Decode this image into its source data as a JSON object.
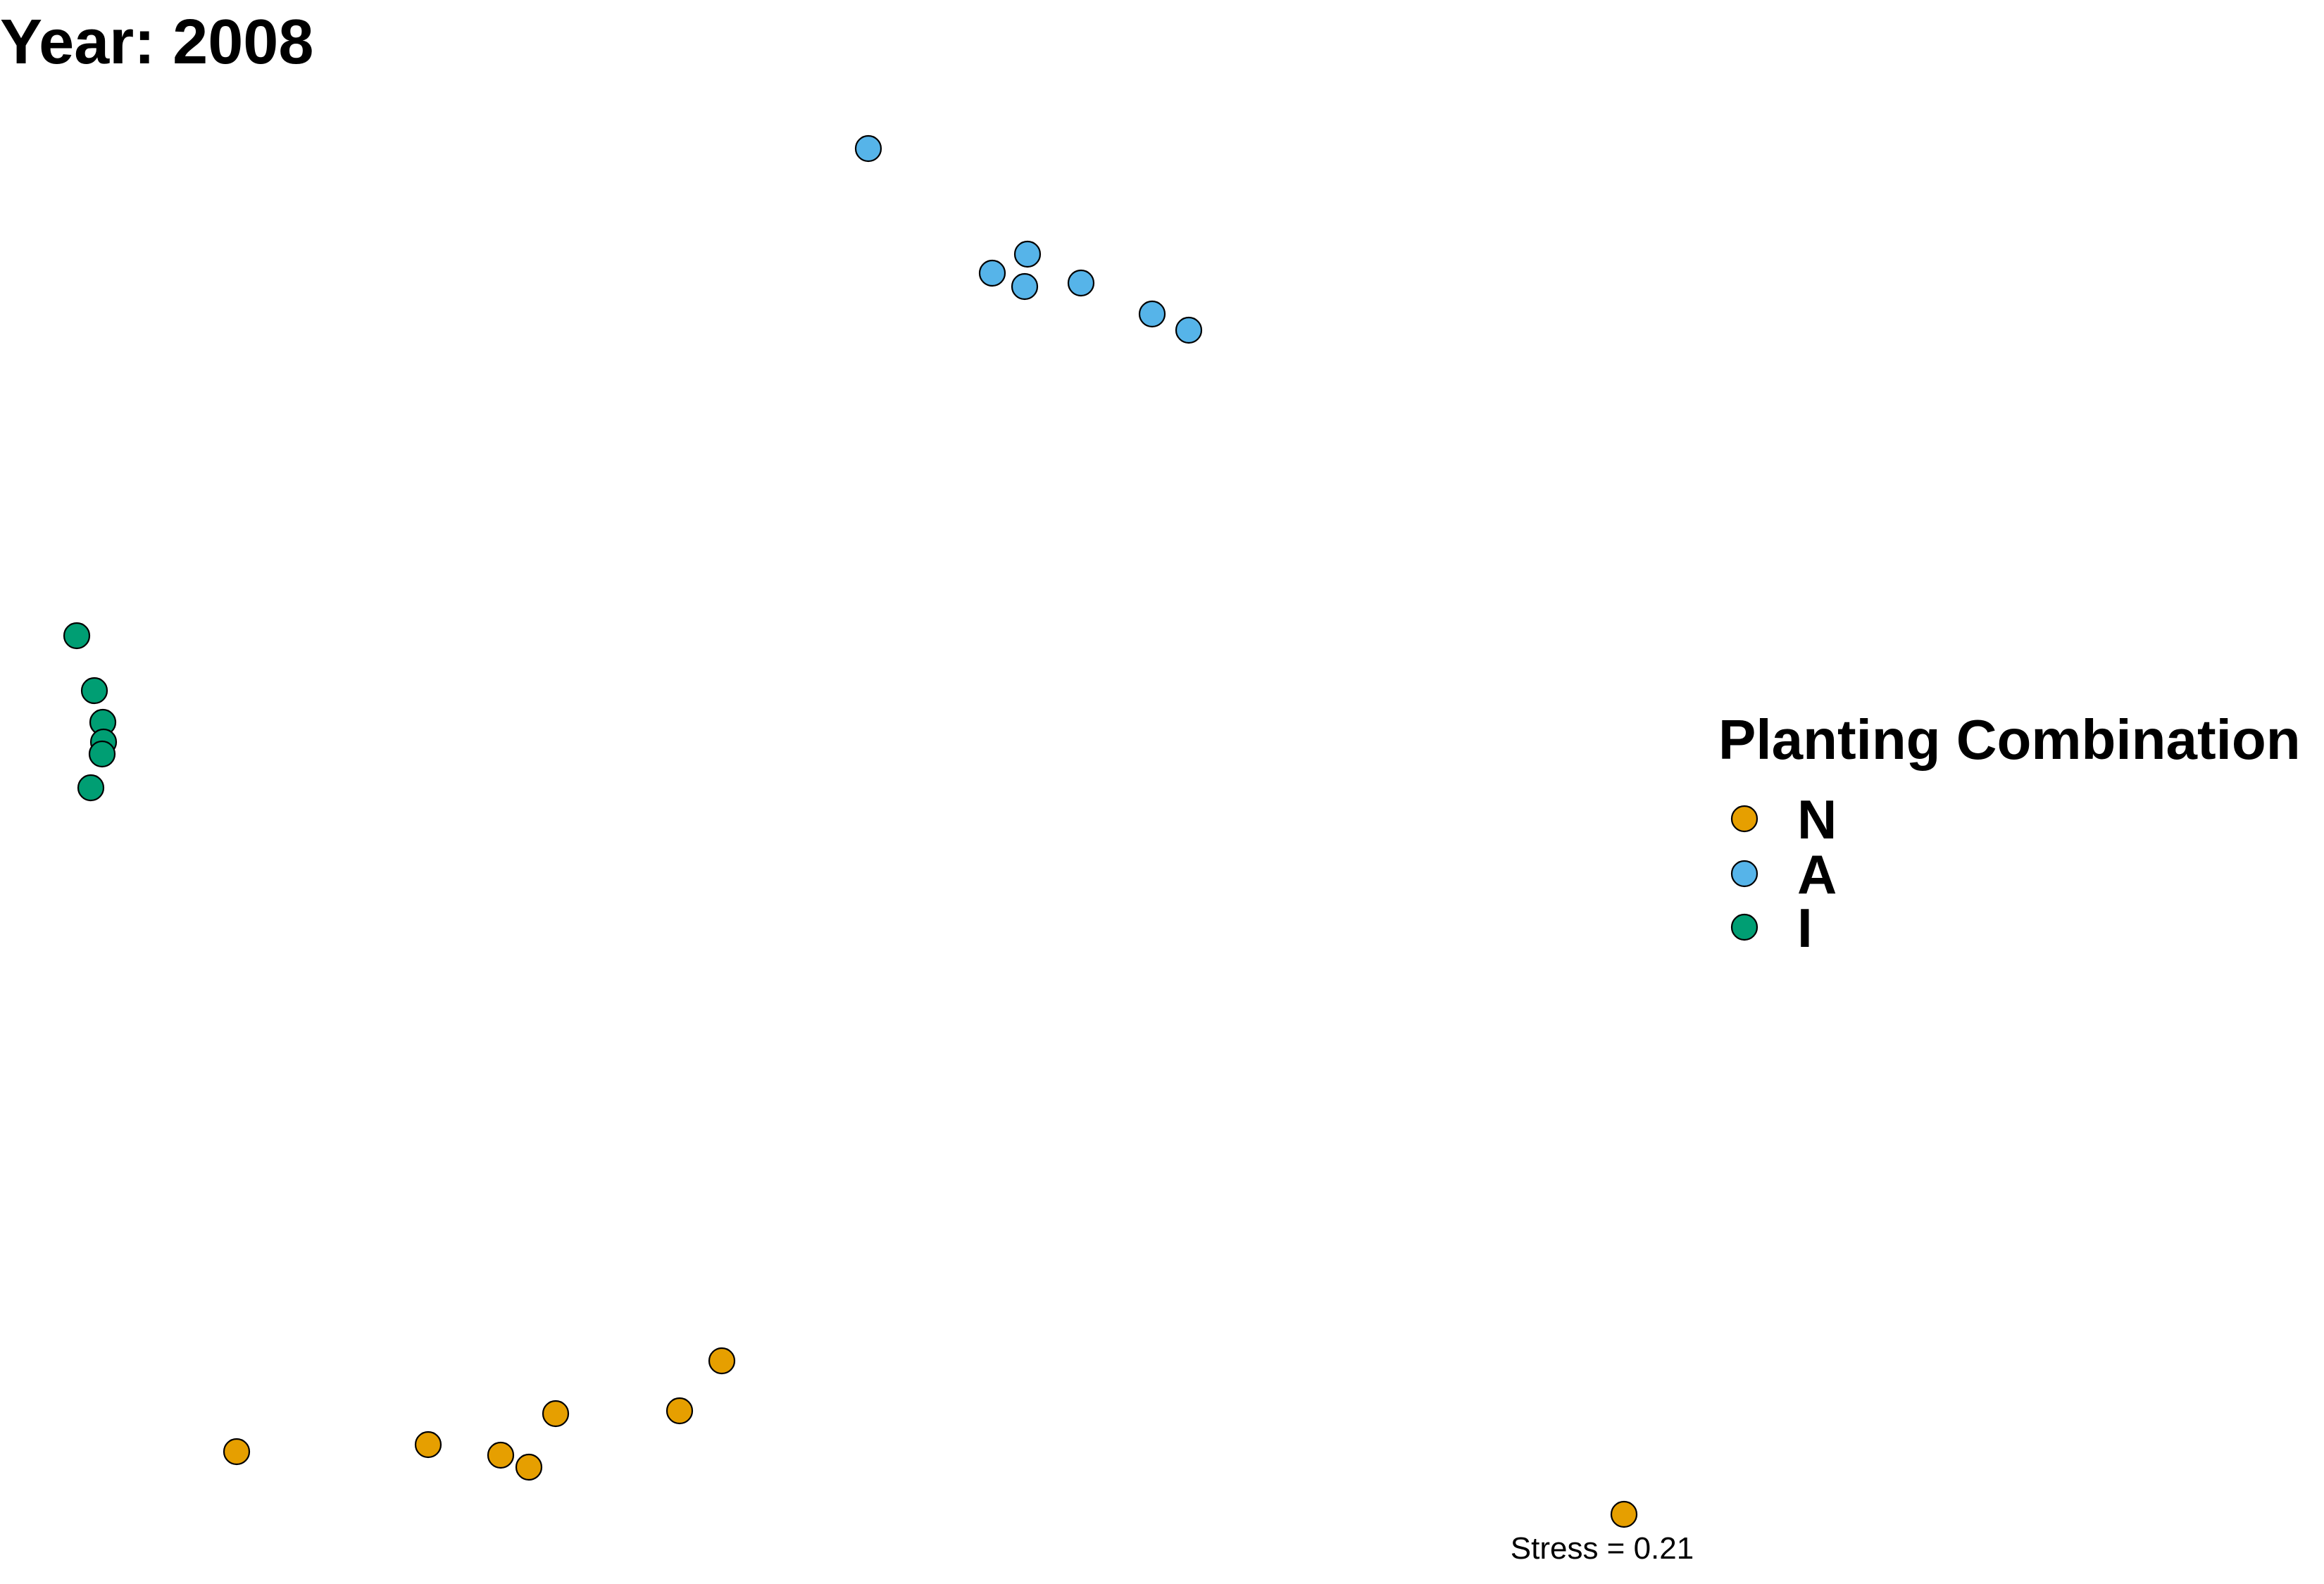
{
  "title": "Year: 2008",
  "chart_data": {
    "type": "scatter",
    "title": "Year: 2008",
    "xlabel": "",
    "ylabel": "",
    "xlim": [
      0,
      2350
    ],
    "ylim": [
      -2250,
      0
    ],
    "grid": false,
    "legend": {
      "title": "Planting Combination",
      "placement": "right",
      "entries": [
        "N",
        "A",
        "I"
      ]
    },
    "series": [
      {
        "name": "N",
        "color": "#E69F00",
        "points": [
          {
            "x": 336,
            "y": -2062
          },
          {
            "x": 608,
            "y": -2052
          },
          {
            "x": 711,
            "y": -2067
          },
          {
            "x": 751,
            "y": -2084
          },
          {
            "x": 789,
            "y": -2008
          },
          {
            "x": 965,
            "y": -2004
          },
          {
            "x": 1025,
            "y": -1933
          },
          {
            "x": 2306,
            "y": -2151
          }
        ]
      },
      {
        "name": "A",
        "color": "#56B4E9",
        "points": [
          {
            "x": 1233,
            "y": -211
          },
          {
            "x": 1409,
            "y": -388
          },
          {
            "x": 1459,
            "y": -361
          },
          {
            "x": 1455,
            "y": -407
          },
          {
            "x": 1535,
            "y": -402
          },
          {
            "x": 1636,
            "y": -446
          },
          {
            "x": 1688,
            "y": -469
          }
        ]
      },
      {
        "name": "I",
        "color": "#009E73",
        "points": [
          {
            "x": 109,
            "y": -903
          },
          {
            "x": 134,
            "y": -981
          },
          {
            "x": 146,
            "y": -1026
          },
          {
            "x": 147,
            "y": -1054
          },
          {
            "x": 145,
            "y": -1071
          },
          {
            "x": 129,
            "y": -1119
          }
        ]
      }
    ],
    "annotations": [
      {
        "text": "Stress = 0.21",
        "x": 2275,
        "y": -2199
      }
    ]
  }
}
